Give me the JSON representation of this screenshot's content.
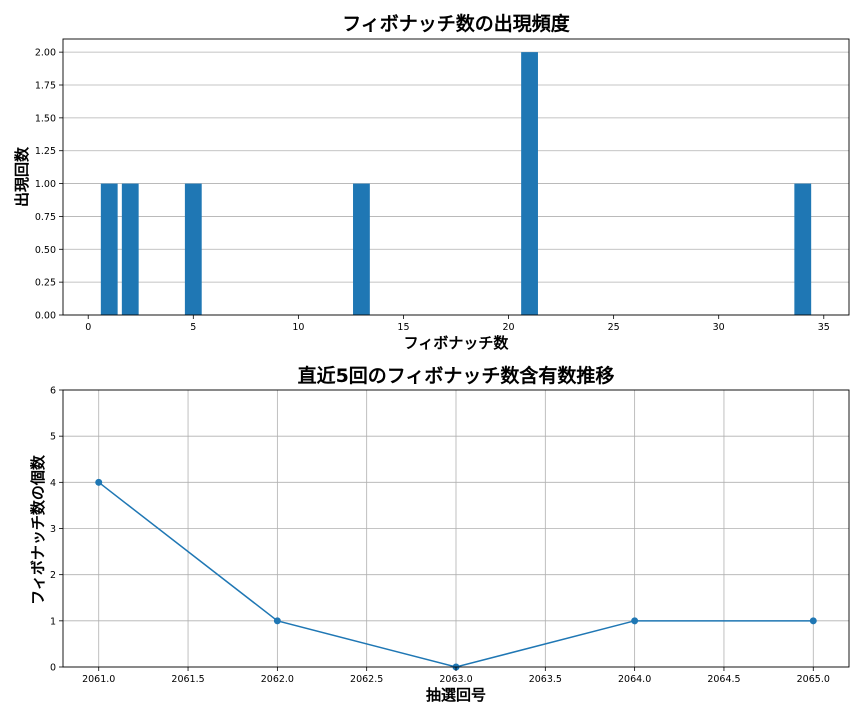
{
  "chart_data": [
    {
      "type": "bar",
      "title": "フィボナッチ数の出現頻度",
      "xlabel": "フィボナッチ数",
      "ylabel": "出現回数",
      "x": [
        1,
        2,
        5,
        13,
        21,
        34
      ],
      "values": [
        1,
        1,
        1,
        1,
        2,
        1
      ],
      "xlim": [
        -1.2,
        36.2
      ],
      "ylim": [
        0,
        2.1
      ],
      "xticks": [
        0,
        5,
        10,
        15,
        20,
        25,
        30,
        35
      ],
      "xtick_labels": [
        "0",
        "5",
        "10",
        "15",
        "20",
        "25",
        "30",
        "35"
      ],
      "yticks": [
        0,
        0.25,
        0.5,
        0.75,
        1.0,
        1.25,
        1.5,
        1.75,
        2.0
      ],
      "ytick_labels": [
        "0.00",
        "0.25",
        "0.50",
        "0.75",
        "1.00",
        "1.25",
        "1.50",
        "1.75",
        "2.00"
      ],
      "grid": "y",
      "color": "#1f77b4"
    },
    {
      "type": "line",
      "title": "直近5回のフィボナッチ数含有数推移",
      "xlabel": "抽選回号",
      "ylabel": "フィボナッチ数の個数",
      "x": [
        2061,
        2062,
        2063,
        2064,
        2065
      ],
      "values": [
        4,
        1,
        0,
        1,
        1
      ],
      "xlim": [
        2060.8,
        2065.2
      ],
      "ylim": [
        0,
        6
      ],
      "xticks": [
        2061.0,
        2061.5,
        2062.0,
        2062.5,
        2063.0,
        2063.5,
        2064.0,
        2064.5,
        2065.0
      ],
      "xtick_labels": [
        "2061.0",
        "2061.5",
        "2062.0",
        "2062.5",
        "2063.0",
        "2063.5",
        "2064.0",
        "2064.5",
        "2065.0"
      ],
      "yticks": [
        0,
        1,
        2,
        3,
        4,
        5,
        6
      ],
      "ytick_labels": [
        "0",
        "1",
        "2",
        "3",
        "4",
        "5",
        "6"
      ],
      "grid": "both",
      "markers": "circle",
      "color": "#1f77b4"
    }
  ]
}
